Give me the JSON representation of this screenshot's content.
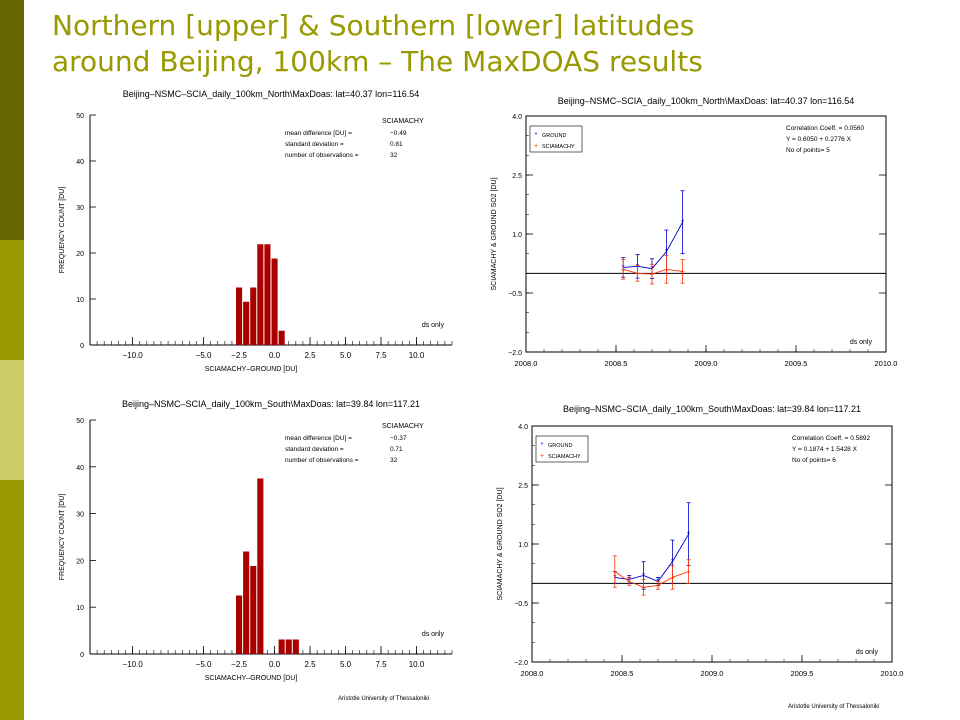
{
  "slide": {
    "title_line1": "Northern [upper] & Southern [lower] latitudes",
    "title_line2": "around Beijing, 100km – The MaxDOAS results",
    "title_color": "#999900",
    "sidebar_colors": [
      "#666600",
      "#999900",
      "#CCCC66",
      "#999900"
    ],
    "credit": "Aristotle University of Thessaloniki"
  },
  "chart_data": [
    {
      "id": "hist-north",
      "type": "bar",
      "title": "Beijing–NSMC–SCIA_daily_100km_North\\MaxDoas: lat=40.37 lon=116.54",
      "xlabel": "SCIAMACHY–GROUND [DU]",
      "ylabel": "FREQUENCY COUNT [DU]",
      "xlim": [
        -13,
        12.5
      ],
      "ylim": [
        0,
        50
      ],
      "xticks": [
        -10.0,
        -5.0,
        -2.5,
        0.0,
        2.5,
        5.0,
        7.5,
        10.0
      ],
      "xtick_labels": [
        "−10.0",
        "−5.0",
        "−2.5",
        "0.0",
        "2.5",
        "5.0",
        "7.5",
        "10.0"
      ],
      "yticks": [
        0,
        10,
        20,
        30,
        40,
        50
      ],
      "legend": "SCIAMACHY",
      "stats": [
        "mean difference [DU] =",
        "−0.49",
        "standard deviation =",
        "0.81",
        "number of observations =",
        "32"
      ],
      "note": "ds only",
      "bar_color": "#AA0000",
      "bin_width": 0.5,
      "bins": [
        {
          "x": -2.5,
          "count": 12.5
        },
        {
          "x": -2.0,
          "count": 9.4
        },
        {
          "x": -1.5,
          "count": 12.5
        },
        {
          "x": -1.0,
          "count": 21.9
        },
        {
          "x": -0.5,
          "count": 21.9
        },
        {
          "x": 0.0,
          "count": 18.8
        },
        {
          "x": 0.5,
          "count": 3.1
        }
      ]
    },
    {
      "id": "series-north",
      "type": "line",
      "title": "Beijing–NSMC–SCIA_daily_100km_North\\MaxDoas: lat=40.37 lon=116.54",
      "ylabel": "SCIAMACHY & GROUND SO2 [DU]",
      "xlim": [
        2008.0,
        2010.0
      ],
      "ylim": [
        -2.0,
        4.0
      ],
      "xticks": [
        2008.0,
        2008.5,
        2009.0,
        2009.5,
        2010.0
      ],
      "xtick_labels": [
        "2008.0",
        "2008.5",
        "2009.0",
        "2009.5",
        "2010.0"
      ],
      "yticks": [
        -2.0,
        -0.5,
        1.0,
        2.5,
        4.0
      ],
      "ytick_labels": [
        "−2.0",
        "−0.5",
        "1.0",
        "2.5",
        "4.0"
      ],
      "zero_line": 0,
      "stats": [
        "Correlation Coeff. = 0.0560",
        "Y = 0.6050 + 0.2776 X",
        "No of points= 5"
      ],
      "note": "ds only",
      "series": [
        {
          "name": "GROUND",
          "color": "#0000CC",
          "marker": "*",
          "x": [
            2008.54,
            2008.62,
            2008.7,
            2008.78,
            2008.87
          ],
          "y": [
            0.15,
            0.18,
            0.12,
            0.55,
            1.3
          ],
          "err": [
            0.25,
            0.3,
            0.25,
            0.55,
            0.8
          ]
        },
        {
          "name": "SCIAMACHY",
          "color": "#FF3300",
          "marker": "+",
          "x": [
            2008.54,
            2008.62,
            2008.7,
            2008.78,
            2008.87
          ],
          "y": [
            0.1,
            0.0,
            -0.02,
            0.1,
            0.05
          ],
          "err": [
            0.25,
            0.2,
            0.25,
            0.35,
            0.3
          ]
        }
      ]
    },
    {
      "id": "hist-south",
      "type": "bar",
      "title": "Beijing–NSMC–SCIA_daily_100km_South\\MaxDoas: lat=39.84 lon=117.21",
      "xlabel": "SCIAMACHY–GROUND [DU]",
      "ylabel": "FREQUENCY COUNT [DU]",
      "xlim": [
        -13,
        12.5
      ],
      "ylim": [
        0,
        50
      ],
      "xticks": [
        -10.0,
        -5.0,
        -2.5,
        0.0,
        2.5,
        5.0,
        7.5,
        10.0
      ],
      "xtick_labels": [
        "−10.0",
        "−5.0",
        "−2.5",
        "0.0",
        "2.5",
        "5.0",
        "7.5",
        "10.0"
      ],
      "yticks": [
        0,
        10,
        20,
        30,
        40,
        50
      ],
      "legend": "SCIAMACHY",
      "stats": [
        "mean difference [DU] =",
        "−0.37",
        "standard deviation =",
        "0.71",
        "number of observations =",
        "32"
      ],
      "note": "ds only",
      "bar_color": "#AA0000",
      "bin_width": 0.5,
      "bins": [
        {
          "x": -2.5,
          "count": 12.5
        },
        {
          "x": -2.0,
          "count": 21.9
        },
        {
          "x": -1.5,
          "count": 18.8
        },
        {
          "x": -1.0,
          "count": 37.5
        },
        {
          "x": 0.5,
          "count": 3.1
        },
        {
          "x": 1.0,
          "count": 3.1
        },
        {
          "x": 1.5,
          "count": 3.1
        }
      ]
    },
    {
      "id": "series-south",
      "type": "line",
      "title": "Beijing–NSMC–SCIA_daily_100km_South\\MaxDoas: lat=39.84 lon=117.21",
      "ylabel": "SCIAMACHY & GROUND SO2 [DU]",
      "xlim": [
        2008.0,
        2010.0
      ],
      "ylim": [
        -2.0,
        4.0
      ],
      "xticks": [
        2008.0,
        2008.5,
        2009.0,
        2009.5,
        2010.0
      ],
      "xtick_labels": [
        "2008.0",
        "2008.5",
        "2009.0",
        "2009.5",
        "2010.0"
      ],
      "yticks": [
        -2.0,
        -0.5,
        1.0,
        2.5,
        4.0
      ],
      "ytick_labels": [
        "−2.0",
        "−0.5",
        "1.0",
        "2.5",
        "4.0"
      ],
      "zero_line": 0,
      "stats": [
        "Correlation Coeff. = 0.5892",
        "Y = 0.1874 + 1.5428 X",
        "No of points= 6"
      ],
      "note": "ds only",
      "series": [
        {
          "name": "GROUND",
          "color": "#0000CC",
          "marker": "*",
          "x": [
            2008.46,
            2008.54,
            2008.62,
            2008.7,
            2008.78,
            2008.87
          ],
          "y": [
            0.15,
            0.1,
            0.2,
            0.05,
            0.55,
            1.25
          ],
          "err": [
            0.15,
            0.1,
            0.35,
            0.1,
            0.55,
            0.8
          ]
        },
        {
          "name": "SCIAMACHY",
          "color": "#FF3300",
          "marker": "+",
          "x": [
            2008.46,
            2008.54,
            2008.62,
            2008.7,
            2008.78,
            2008.87
          ],
          "y": [
            0.3,
            0.05,
            -0.1,
            -0.05,
            0.15,
            0.3
          ],
          "err": [
            0.4,
            0.1,
            0.2,
            0.1,
            0.3,
            0.3
          ]
        }
      ]
    }
  ]
}
